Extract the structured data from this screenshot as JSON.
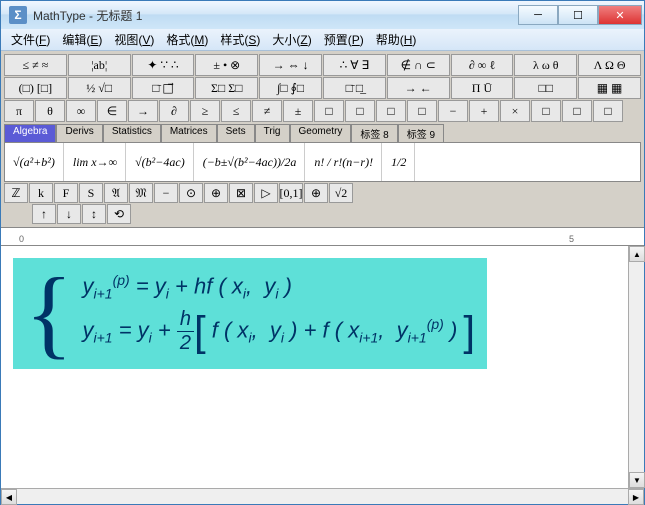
{
  "window": {
    "app_name": "MathType",
    "document_title": "无标题 1",
    "icon_glyph": "Σ"
  },
  "window_controls": {
    "minimize": "─",
    "maximize": "☐",
    "close": "✕"
  },
  "menu": [
    {
      "label": "文件",
      "accel": "F"
    },
    {
      "label": "编辑",
      "accel": "E"
    },
    {
      "label": "视图",
      "accel": "V"
    },
    {
      "label": "格式",
      "accel": "M"
    },
    {
      "label": "样式",
      "accel": "S"
    },
    {
      "label": "大小",
      "accel": "Z"
    },
    {
      "label": "预置",
      "accel": "P"
    },
    {
      "label": "帮助",
      "accel": "H"
    }
  ],
  "toolbar": {
    "row1": [
      "≤ ≠ ≈",
      "¦ab¦",
      "✦ ∵ ∴",
      "± • ⊗",
      "→ ⇔ ↓",
      "∴ ∀ ∃",
      "∉ ∩ ⊂",
      "∂ ∞ ℓ",
      "λ ω θ",
      "Λ Ω Θ"
    ],
    "row2": [
      "(□) [□]",
      "½ √□",
      "□̄ □⃗",
      "Σ□ Σ□",
      "∫□ ∮□",
      "□̄ □̲",
      "→ ←",
      "Π Ū",
      "□□",
      "▦ ▦"
    ],
    "row3": [
      "π",
      "θ",
      "∞",
      "∈",
      "→",
      "∂",
      "≥",
      "≤",
      "≠",
      "±",
      "□",
      "□",
      "□",
      "□",
      "−",
      "+",
      "×",
      "□",
      "□",
      "□"
    ]
  },
  "tabs": [
    "Algebra",
    "Derivs",
    "Statistics",
    "Matrices",
    "Sets",
    "Trig",
    "Geometry",
    "标签 8",
    "标签 9"
  ],
  "active_tab": 0,
  "formulas": [
    "√(a²+b²)",
    "lim x→∞",
    "√(b²−4ac)",
    "(−b±√(b²−4ac))/2a",
    "n! / r!(n−r)!",
    "1/2"
  ],
  "smallbar": [
    "ℤ",
    "k",
    "F",
    "S",
    "𝔄",
    "𝔐",
    "−",
    "⊙",
    "⊕",
    "⊠",
    "▷",
    "[0,1]",
    "⊕",
    "√2"
  ],
  "navbar": [
    "↑",
    "↓",
    "↕",
    "⟲"
  ],
  "ruler": {
    "marks": [
      0,
      5
    ]
  },
  "equation": {
    "line1": "y(p)i+1 = yi + hf (xi, yi)",
    "line2": "yi+1 = yi + (h/2)[ f(xi, yi) + f(xi+1, y(p)i+1) ]",
    "highlight_color": "#5ee0d8",
    "text_color": "#003366"
  },
  "colors": {
    "titlebar_start": "#f0f7ff",
    "titlebar_end": "#cfe6f8",
    "panel_bg": "#d4d0c8",
    "tab_active": "#5b5bd6"
  }
}
